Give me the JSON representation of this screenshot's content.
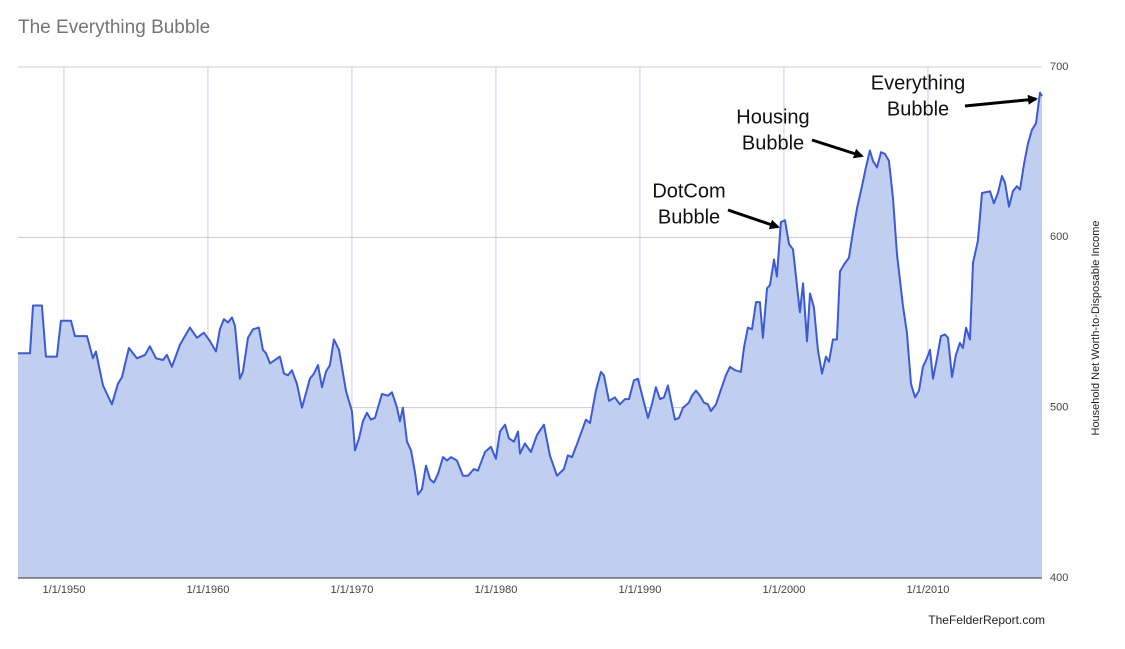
{
  "chart_data": {
    "type": "area",
    "title": "The Everything Bubble",
    "y_axis_label": "Household Net Worth-to-Disposable Income",
    "source": "TheFelderReport.com",
    "annotations": [
      {
        "lines": [
          "DotCom",
          "Bubble"
        ]
      },
      {
        "lines": [
          "Housing",
          "Bubble"
        ]
      },
      {
        "lines": [
          "Everything",
          "Bubble"
        ]
      }
    ],
    "color": "#3b5bd6",
    "fill": "#c0cef0",
    "grid": true,
    "y_axis_side": "right",
    "xlim": [
      1946.81,
      2017.92
    ],
    "ylim": [
      400,
      700
    ],
    "xticks": [
      {
        "value": 1950,
        "label": "1/1/1950"
      },
      {
        "value": 1960,
        "label": "1/1/1960"
      },
      {
        "value": 1970,
        "label": "1/1/1970"
      },
      {
        "value": 1980,
        "label": "1/1/1980"
      },
      {
        "value": 1990,
        "label": "1/1/1990"
      },
      {
        "value": 2000,
        "label": "1/1/2000"
      },
      {
        "value": 2010,
        "label": "1/1/2010"
      }
    ],
    "yticks": [
      400,
      500,
      600,
      700
    ],
    "x": [
      1946.81,
      1947.64,
      1947.85,
      1948.47,
      1948.75,
      1949.51,
      1949.79,
      1950.49,
      1950.76,
      1951.6,
      1952.01,
      1952.22,
      1952.71,
      1953.33,
      1953.75,
      1954.03,
      1954.51,
      1955.07,
      1955.63,
      1955.97,
      1956.39,
      1956.88,
      1957.15,
      1957.5,
      1958.06,
      1958.75,
      1959.24,
      1959.72,
      1960.14,
      1960.56,
      1960.83,
      1961.11,
      1961.39,
      1961.67,
      1961.88,
      1962.22,
      1962.43,
      1962.78,
      1963.13,
      1963.54,
      1963.82,
      1964.03,
      1964.31,
      1965.0,
      1965.28,
      1965.56,
      1965.83,
      1966.18,
      1966.53,
      1967.08,
      1967.36,
      1967.64,
      1967.92,
      1968.19,
      1968.47,
      1968.75,
      1969.1,
      1969.58,
      1970.0,
      1970.21,
      1970.49,
      1970.76,
      1971.04,
      1971.32,
      1971.6,
      1972.08,
      1972.5,
      1972.78,
      1973.13,
      1973.33,
      1973.54,
      1973.82,
      1974.1,
      1974.38,
      1974.58,
      1974.86,
      1975.14,
      1975.42,
      1975.69,
      1975.97,
      1976.32,
      1976.6,
      1976.88,
      1977.29,
      1977.71,
      1978.06,
      1978.47,
      1978.75,
      1979.24,
      1979.65,
      1980.0,
      1980.28,
      1980.63,
      1980.9,
      1981.25,
      1981.53,
      1981.67,
      1982.01,
      1982.43,
      1982.85,
      1983.33,
      1983.75,
      1984.24,
      1984.72,
      1985.0,
      1985.28,
      1985.69,
      1986.25,
      1986.53,
      1986.94,
      1987.29,
      1987.5,
      1987.85,
      1988.26,
      1988.61,
      1988.96,
      1989.24,
      1989.58,
      1989.86,
      1990.28,
      1990.56,
      1990.83,
      1991.11,
      1991.39,
      1991.67,
      1991.94,
      1992.43,
      1992.71,
      1992.99,
      1993.4,
      1993.61,
      1993.89,
      1994.17,
      1994.44,
      1994.72,
      1994.93,
      1995.28,
      1995.56,
      1995.97,
      1996.25,
      1996.6,
      1997.01,
      1997.22,
      1997.5,
      1997.78,
      1998.06,
      1998.33,
      1998.54,
      1998.82,
      1999.03,
      1999.31,
      1999.51,
      1999.79,
      2000.07,
      2000.35,
      2000.63,
      2000.9,
      2001.11,
      2001.32,
      2001.6,
      2001.81,
      2002.08,
      2002.36,
      2002.64,
      2002.92,
      2003.13,
      2003.4,
      2003.68,
      2003.89,
      2004.17,
      2004.51,
      2004.79,
      2005.07,
      2005.42,
      2005.69,
      2005.97,
      2006.18,
      2006.46,
      2006.74,
      2007.01,
      2007.29,
      2007.57,
      2007.85,
      2008.26,
      2008.54,
      2008.82,
      2009.1,
      2009.38,
      2009.65,
      2009.93,
      2010.14,
      2010.35,
      2010.63,
      2010.9,
      2011.18,
      2011.39,
      2011.67,
      2011.94,
      2012.22,
      2012.43,
      2012.64,
      2012.92,
      2013.13,
      2013.47,
      2013.75,
      2014.31,
      2014.58,
      2014.86,
      2015.14,
      2015.35,
      2015.63,
      2015.9,
      2016.18,
      2016.39,
      2016.67,
      2016.94,
      2017.22,
      2017.5,
      2017.78,
      2017.92
    ],
    "values": [
      532,
      532,
      560,
      560,
      530,
      530,
      551,
      551,
      542,
      542,
      529,
      533,
      513,
      502,
      514,
      518,
      535,
      529,
      531,
      536,
      529,
      528,
      531,
      524,
      537,
      547,
      541,
      544,
      539,
      533,
      546,
      552,
      550,
      553,
      548,
      517,
      521,
      541,
      546,
      547,
      534,
      532,
      526,
      530,
      520,
      519,
      522,
      514,
      500,
      517,
      520,
      525,
      512,
      521,
      525,
      540,
      534,
      510,
      498,
      475,
      482,
      492,
      497,
      493,
      494,
      508,
      507,
      509,
      500,
      492,
      500,
      480,
      475,
      462,
      449,
      452,
      466,
      458,
      456,
      461,
      471,
      469,
      471,
      469,
      460,
      460,
      464,
      463,
      474,
      477,
      470,
      486,
      490,
      482,
      480,
      486,
      473,
      479,
      474,
      484,
      490,
      472,
      460,
      464,
      472,
      471,
      480,
      493,
      491,
      510,
      521,
      519,
      504,
      506,
      502,
      505,
      505,
      516,
      517,
      503,
      494,
      502,
      512,
      505,
      506,
      513,
      493,
      494,
      500,
      503,
      507,
      510,
      507,
      503,
      502,
      498,
      502,
      509,
      519,
      524,
      522,
      521,
      535,
      547,
      546,
      562,
      562,
      541,
      570,
      572,
      587,
      577,
      609,
      610,
      596,
      593,
      572,
      556,
      573,
      539,
      567,
      559,
      534,
      520,
      530,
      527,
      540,
      540,
      580,
      584,
      588,
      603,
      617,
      630,
      641,
      651,
      645,
      641,
      650,
      649,
      645,
      623,
      590,
      560,
      544,
      514,
      506,
      510,
      524,
      529,
      534,
      517,
      529,
      542,
      543,
      541,
      518,
      531,
      538,
      535,
      547,
      540,
      585,
      598,
      626,
      627,
      620,
      626,
      636,
      632,
      618,
      627,
      630,
      628,
      643,
      655,
      663,
      667,
      685,
      683
    ]
  }
}
